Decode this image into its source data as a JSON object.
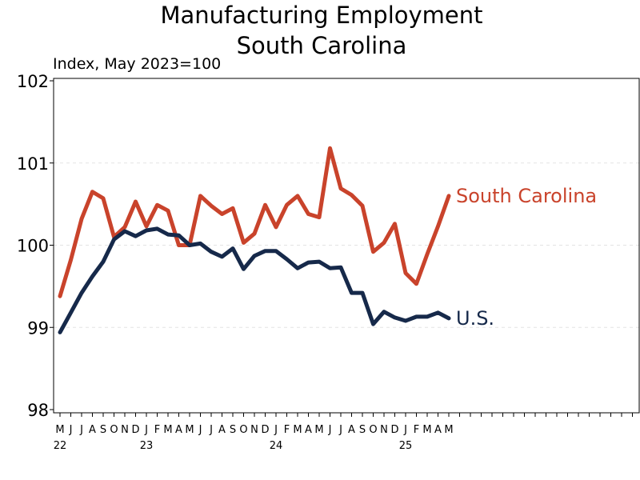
{
  "chart_data": {
    "type": "line",
    "title": [
      "Manufacturing Employment",
      "South Carolina"
    ],
    "subtitle": "Index, May 2023=100",
    "ylim": [
      98,
      102
    ],
    "yticks": [
      "98",
      "99",
      "100",
      "101",
      "102"
    ],
    "grid": "horizontal dashed",
    "legend": "direct labels at line ends",
    "x_month_labels": [
      "M",
      "J",
      "J",
      "A",
      "S",
      "O",
      "N",
      "D",
      "J",
      "F",
      "M",
      "A",
      "M",
      "J",
      "J",
      "A",
      "S",
      "O",
      "N",
      "D",
      "J",
      "F",
      "M",
      "A",
      "M",
      "J",
      "J",
      "A",
      "S",
      "O",
      "N",
      "D",
      "J",
      "F",
      "M",
      "A",
      "M"
    ],
    "x_year_labels": [
      {
        "index": 0,
        "label": "22"
      },
      {
        "index": 8,
        "label": "23"
      },
      {
        "index": 20,
        "label": "24"
      },
      {
        "index": 32,
        "label": "25"
      }
    ],
    "x_total_slots": 55,
    "series": [
      {
        "name": "South Carolina",
        "color": "#c9432b",
        "values": [
          99.38,
          99.82,
          100.32,
          100.65,
          100.57,
          100.1,
          100.22,
          100.53,
          100.23,
          100.49,
          100.42,
          100.0,
          100.0,
          100.6,
          100.48,
          100.38,
          100.45,
          100.03,
          100.14,
          100.49,
          100.22,
          100.49,
          100.6,
          100.38,
          100.34,
          101.18,
          100.69,
          100.61,
          100.48,
          99.92,
          100.03,
          100.26,
          99.66,
          99.53,
          99.89,
          100.23,
          100.6
        ]
      },
      {
        "name": "U.S.",
        "color": "#16294a",
        "values": [
          98.94,
          99.18,
          99.42,
          99.62,
          99.8,
          100.07,
          100.17,
          100.11,
          100.18,
          100.2,
          100.13,
          100.12,
          100.0,
          100.02,
          99.92,
          99.86,
          99.96,
          99.71,
          99.87,
          99.93,
          99.93,
          99.83,
          99.72,
          99.79,
          99.8,
          99.72,
          99.73,
          99.42,
          99.42,
          99.04,
          99.19,
          99.12,
          99.08,
          99.13,
          99.13,
          99.18,
          99.11
        ]
      }
    ]
  }
}
